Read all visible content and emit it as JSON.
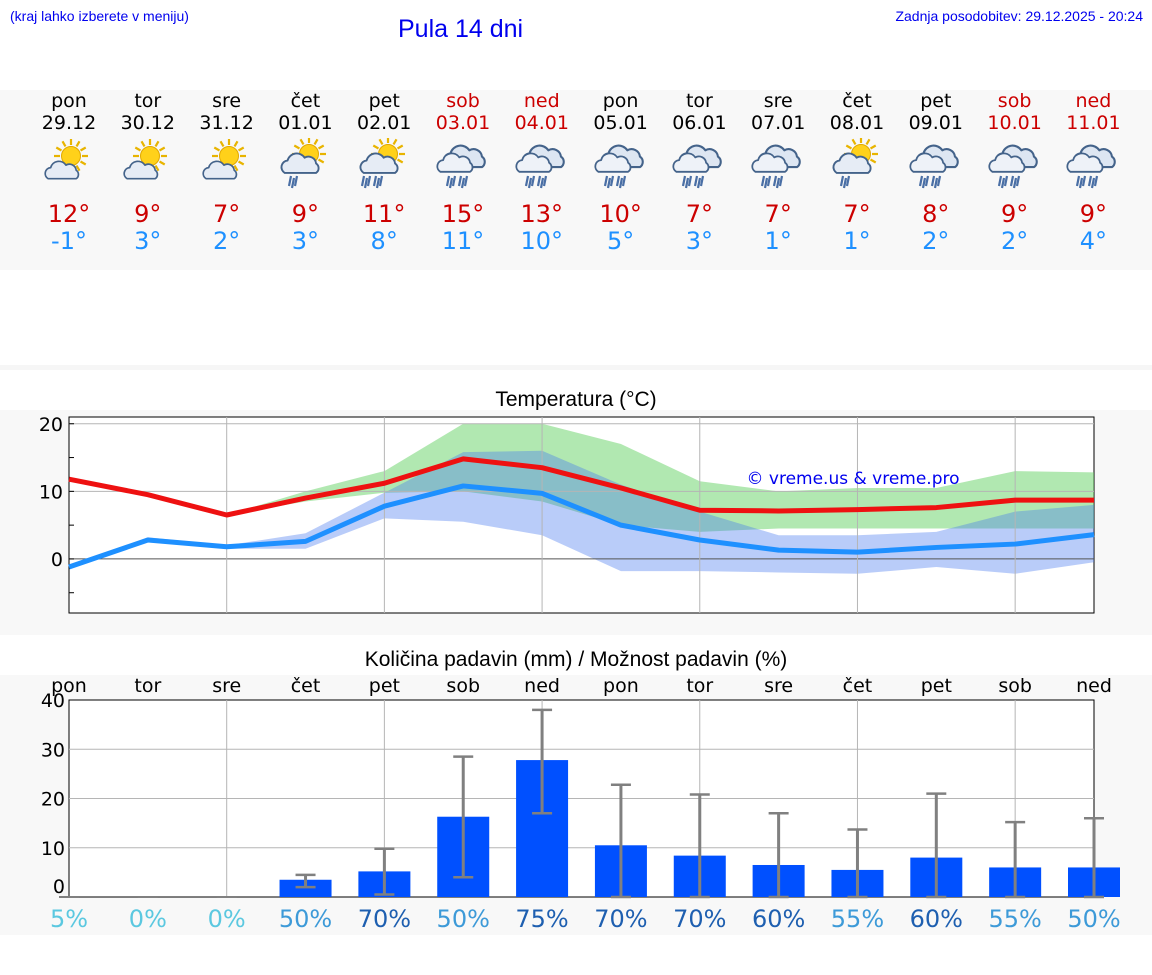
{
  "header": {
    "note": "(kraj lahko izberete v meniju)",
    "title": "Pula 14 dni",
    "updated": "Zadnja posodobitev: 29.12.2025 - 20:24"
  },
  "colors": {
    "max": "#cc0000",
    "min": "#1e90ff",
    "bar": "#0050ff",
    "weekend": "#cc0000"
  },
  "days": [
    {
      "name": "pon",
      "date": "29.12",
      "weekend": false,
      "icon": "sun-cloud-icon",
      "max": "12°",
      "min": "-1°"
    },
    {
      "name": "tor",
      "date": "30.12",
      "weekend": false,
      "icon": "sun-cloud-icon",
      "max": "9°",
      "min": "3°"
    },
    {
      "name": "sre",
      "date": "31.12",
      "weekend": false,
      "icon": "sun-cloud-icon",
      "max": "7°",
      "min": "2°"
    },
    {
      "name": "čet",
      "date": "01.01",
      "weekend": false,
      "icon": "sun-rain-icon",
      "max": "9°",
      "min": "3°"
    },
    {
      "name": "pet",
      "date": "02.01",
      "weekend": false,
      "icon": "sun-heavy-rain-icon",
      "max": "11°",
      "min": "8°"
    },
    {
      "name": "sob",
      "date": "03.01",
      "weekend": true,
      "icon": "rain-cloud-icon",
      "max": "15°",
      "min": "11°"
    },
    {
      "name": "ned",
      "date": "04.01",
      "weekend": true,
      "icon": "rain-cloud-icon",
      "max": "13°",
      "min": "10°"
    },
    {
      "name": "pon",
      "date": "05.01",
      "weekend": false,
      "icon": "rain-cloud-icon",
      "max": "10°",
      "min": "5°"
    },
    {
      "name": "tor",
      "date": "06.01",
      "weekend": false,
      "icon": "rain-cloud-icon",
      "max": "7°",
      "min": "3°"
    },
    {
      "name": "sre",
      "date": "07.01",
      "weekend": false,
      "icon": "rain-cloud-icon",
      "max": "7°",
      "min": "1°"
    },
    {
      "name": "čet",
      "date": "08.01",
      "weekend": false,
      "icon": "sun-rain-icon",
      "max": "7°",
      "min": "1°"
    },
    {
      "name": "pet",
      "date": "09.01",
      "weekend": false,
      "icon": "rain-cloud-icon",
      "max": "8°",
      "min": "2°"
    },
    {
      "name": "sob",
      "date": "10.01",
      "weekend": true,
      "icon": "rain-cloud-icon",
      "max": "9°",
      "min": "2°"
    },
    {
      "name": "ned",
      "date": "11.01",
      "weekend": true,
      "icon": "rain-cloud-icon",
      "max": "9°",
      "min": "4°"
    }
  ],
  "chart_data": [
    {
      "type": "line",
      "title": "Temperatura (°C)",
      "watermark": "© vreme.us & vreme.pro",
      "x": [
        0,
        1,
        2,
        3,
        4,
        5,
        6,
        7,
        8,
        9,
        10,
        11,
        12,
        13
      ],
      "ylim": [
        -8,
        21
      ],
      "yticks": [
        "20",
        "10",
        "0"
      ],
      "series": [
        {
          "name": "max",
          "values": [
            11.8,
            9.5,
            6.5,
            9.0,
            11.2,
            14.8,
            13.5,
            10.5,
            7.2,
            7.1,
            7.3,
            7.6,
            8.7,
            8.7
          ]
        },
        {
          "name": "min",
          "values": [
            -1.2,
            2.8,
            1.8,
            2.6,
            7.8,
            10.8,
            9.7,
            5.0,
            2.8,
            1.3,
            1.0,
            1.7,
            2.2,
            3.6
          ]
        },
        {
          "name": "max_range_low",
          "values": [
            11.8,
            9.5,
            6.5,
            8.5,
            9.8,
            10.0,
            8.5,
            5.0,
            4.0,
            4.5,
            4.5,
            4.5,
            4.5,
            4.5
          ]
        },
        {
          "name": "max_range_high",
          "values": [
            11.8,
            9.5,
            6.5,
            10.0,
            13.0,
            20.0,
            20.0,
            17.0,
            11.5,
            10.0,
            10.5,
            10.5,
            13.0,
            12.8
          ]
        },
        {
          "name": "min_range_low",
          "values": [
            -1.2,
            2.5,
            1.5,
            1.5,
            6.0,
            5.5,
            3.5,
            -1.8,
            -1.8,
            -2.0,
            -2.2,
            -1.2,
            -2.2,
            -0.5
          ]
        },
        {
          "name": "min_range_high",
          "values": [
            -1.2,
            3.2,
            2.0,
            3.8,
            9.8,
            15.8,
            16.0,
            11.0,
            7.0,
            3.5,
            3.5,
            4.0,
            7.0,
            8.0
          ]
        }
      ]
    },
    {
      "type": "bar",
      "title": "Količina padavin (mm) / Možnost padavin (%)",
      "categories": [
        "pon",
        "tor",
        "sre",
        "čet",
        "pet",
        "sob",
        "ned",
        "pon",
        "tor",
        "sre",
        "čet",
        "pet",
        "sob",
        "ned"
      ],
      "ylim": [
        0,
        40
      ],
      "yticks": [
        "40",
        "30",
        "20",
        "10",
        "0"
      ],
      "values": [
        0,
        0,
        0,
        3.5,
        5.2,
        16.3,
        27.8,
        10.5,
        8.4,
        6.5,
        5.5,
        8.0,
        6.0,
        6.0
      ],
      "error_low": [
        0,
        0,
        0,
        2.0,
        0.5,
        4.0,
        17.0,
        0,
        0,
        0,
        0,
        0,
        0,
        0
      ],
      "error_high": [
        0,
        0,
        0,
        4.5,
        9.8,
        28.5,
        38.0,
        22.8,
        20.8,
        17.0,
        13.7,
        21.0,
        15.2,
        16.0
      ],
      "chance": [
        "5%",
        "0%",
        "0%",
        "50%",
        "70%",
        "50%",
        "75%",
        "70%",
        "70%",
        "60%",
        "55%",
        "60%",
        "55%",
        "50%"
      ]
    }
  ]
}
